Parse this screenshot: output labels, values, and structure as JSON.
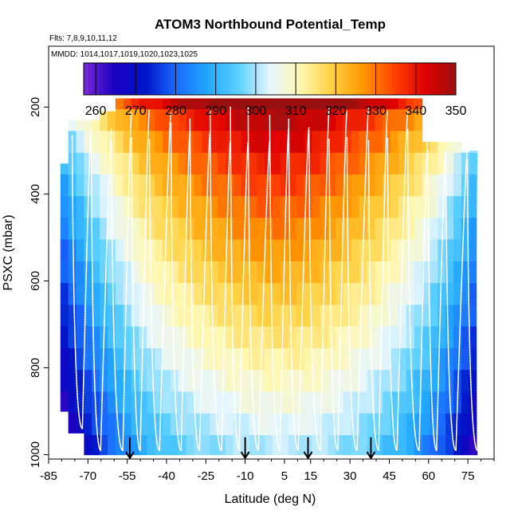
{
  "chart_data": {
    "type": "heatmap",
    "title": "ATOM3 Northbound Potential_Temp",
    "flights_label": "Flts: 7,8,9,10,11,12",
    "dates_label": "MMDD: 1014,1017,1019,1020,1023,1025",
    "xlabel": "Latitude (deg N)",
    "ylabel": "PSXC (mbar)",
    "xlim": [
      -85,
      85
    ],
    "ylim": [
      1010,
      60
    ],
    "x_ticks": [
      -85,
      -70,
      -55,
      -40,
      -25,
      -10,
      5,
      15,
      30,
      45,
      60,
      75
    ],
    "x_tick_labels": [
      "-85",
      "-70",
      "-55",
      "-40",
      "-25",
      "-10",
      "5",
      "15",
      "30",
      "45",
      "60",
      "75"
    ],
    "y_ticks": [
      200,
      400,
      600,
      800,
      1000
    ],
    "y_tick_labels": [
      "200",
      "400",
      "600",
      "800",
      "1000"
    ],
    "colorbar": {
      "min": 257,
      "max": 350,
      "ticks": [
        260,
        270,
        280,
        290,
        300,
        310,
        320,
        330,
        340,
        350
      ],
      "tick_labels": [
        "260",
        "270",
        "280",
        "290",
        "300",
        "310",
        "320",
        "330",
        "340",
        "350"
      ],
      "colors": [
        "#7a2ad8",
        "#1a00c0",
        "#0016c8",
        "#1a6cff",
        "#22a8ff",
        "#5cd0ff",
        "#e6f6ff",
        "#fff7b0",
        "#ffd040",
        "#ff9800",
        "#ff4400",
        "#e00000",
        "#9a1010"
      ]
    },
    "pressure_levels": [
      180,
      230,
      280,
      330,
      380,
      430,
      480,
      530,
      580,
      630,
      680,
      730,
      780,
      830,
      880,
      930,
      980
    ],
    "surface_theta_by_latitude": {
      "latitudes": [
        -80,
        -70,
        -60,
        -50,
        -40,
        -30,
        -20,
        -10,
        0,
        10,
        20,
        30,
        40,
        50,
        60,
        70,
        80
      ],
      "values": [
        258,
        270,
        280,
        288,
        293,
        296,
        298,
        299,
        300,
        300,
        299,
        297,
        294,
        289,
        282,
        272,
        260
      ]
    },
    "arrow_latitudes": [
      -54,
      -10,
      14,
      38
    ]
  }
}
